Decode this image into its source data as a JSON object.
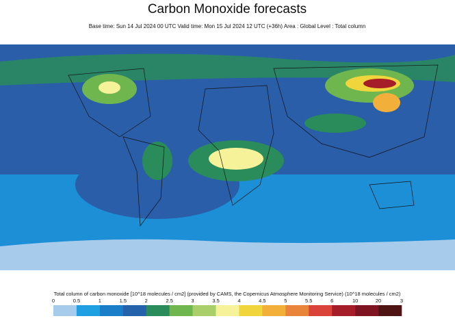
{
  "header": {
    "title": "Carbon Monoxide forecasts",
    "subtitle": "Base time: Sun 14 Jul 2024 00 UTC Valid time: Mon 15 Jul 2024 12 UTC (+36h) Area : Global Level : Total column"
  },
  "legend": {
    "title": "Total column of carbon monoxide [10^18 molecules / cm2] (provided by CAMS, the Copernicus Atmosphere Monitoring Service) (10^18 molecules / cm2)",
    "ticks": [
      "0",
      "0.5",
      "1",
      "1.5",
      "2",
      "2.5",
      "3",
      "3.5",
      "4",
      "4.5",
      "5",
      "5.5",
      "6",
      "10",
      "20",
      "3"
    ],
    "colors": [
      "#a6cbeb",
      "#1ea0e3",
      "#1a7fc8",
      "#2462ac",
      "#2a8c5a",
      "#6fb64f",
      "#a8cf6a",
      "#f5f29a",
      "#f0d53c",
      "#f2b03a",
      "#e8853a",
      "#d9433a",
      "#a61d2a",
      "#7d1420",
      "#4e1414"
    ]
  }
}
